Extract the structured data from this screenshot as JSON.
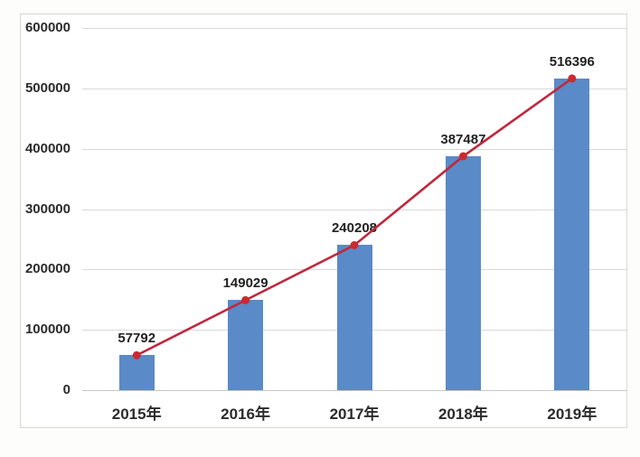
{
  "chart_data": {
    "type": "bar",
    "combo": "bar-with-line-overlay",
    "title": "",
    "xlabel": "",
    "ylabel": "",
    "categories": [
      "2015年",
      "2016年",
      "2017年",
      "2018年",
      "2019年"
    ],
    "series": [
      {
        "name": "bars",
        "type": "bar",
        "values": [
          57792,
          149029,
          240208,
          387487,
          516396
        ]
      },
      {
        "name": "trend-line",
        "type": "line",
        "values": [
          57792,
          149029,
          240208,
          387487,
          516396
        ]
      }
    ],
    "data_labels": [
      "57792",
      "149029",
      "240208",
      "387487",
      "516396"
    ],
    "ylim": [
      0,
      600000
    ],
    "y_ticks": [
      0,
      100000,
      200000,
      300000,
      400000,
      500000,
      600000
    ],
    "grid": true,
    "legend_position": "none"
  },
  "colors": {
    "bar_fill": "#5a8ac7",
    "line_stroke": "#c0273d",
    "marker_fill": "#cb2a30",
    "gridline": "#d9d9d9",
    "axis_text": "#2b2b2b",
    "frame_border": "#d8d8d6",
    "background": "#ffffff"
  }
}
